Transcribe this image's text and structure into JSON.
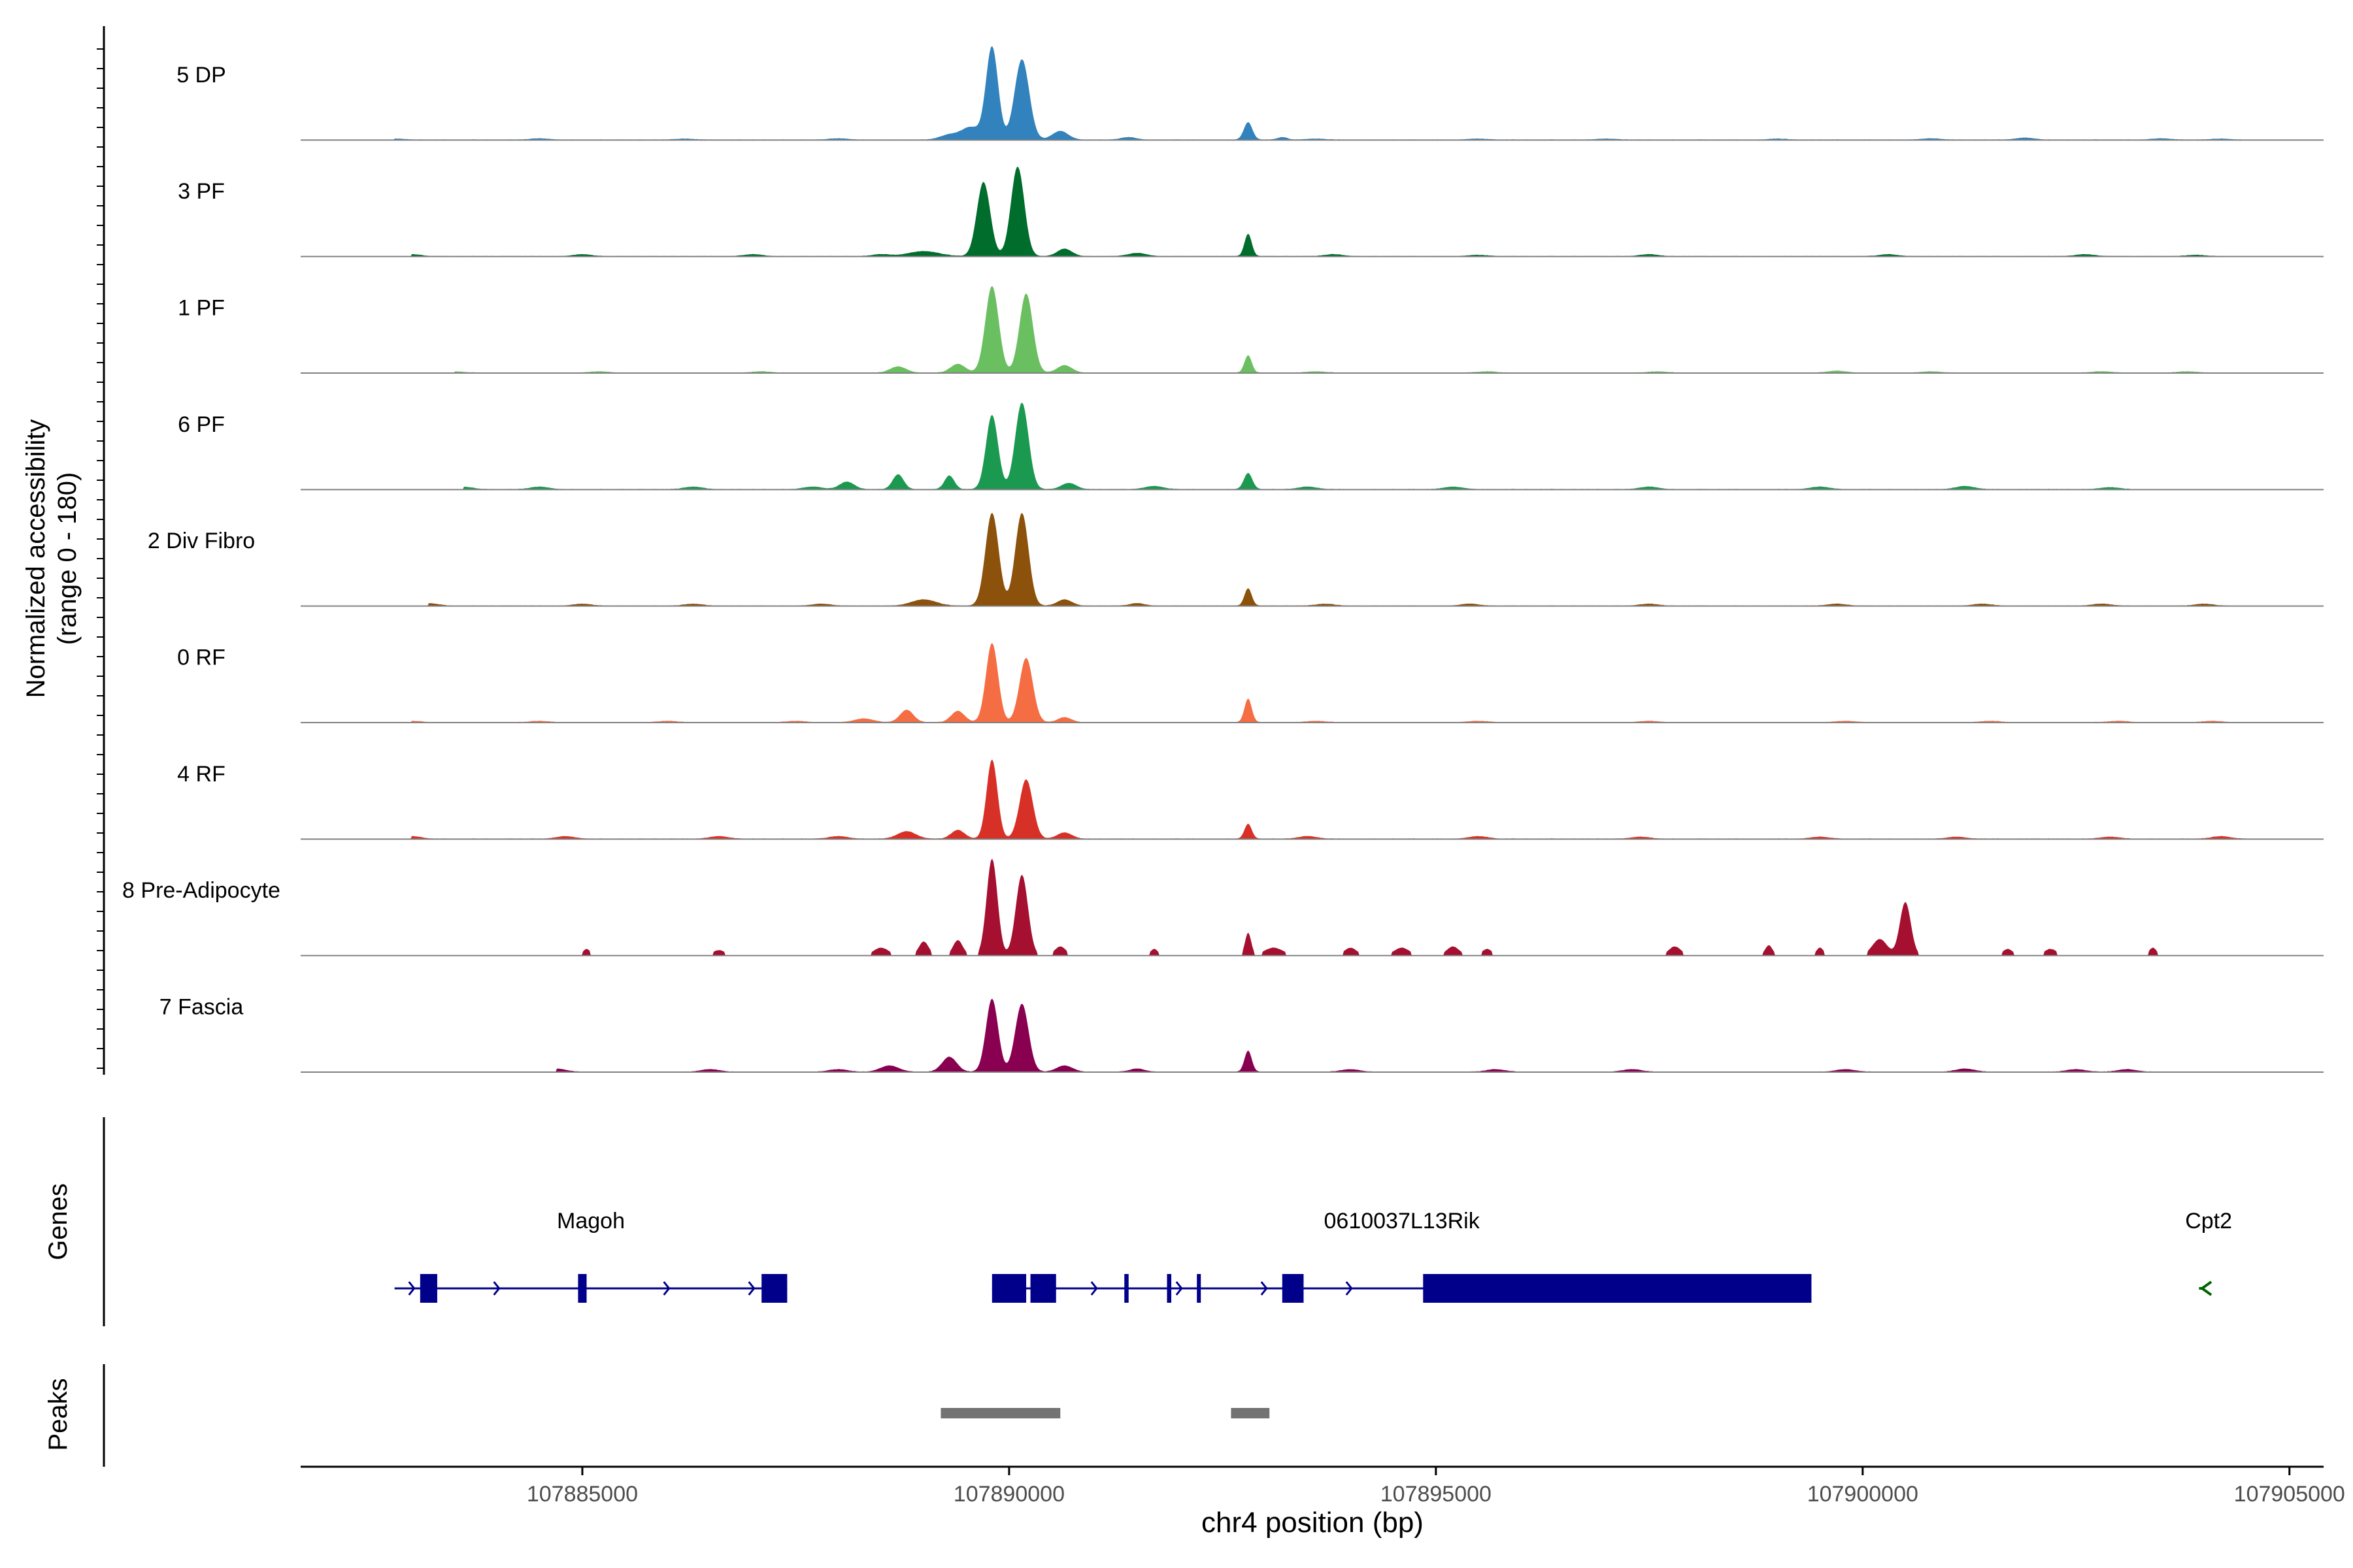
{
  "chart_data": {
    "type": "area",
    "title": "",
    "y_axis_label": "Normalized accessibility",
    "y_axis_sublabel": "(range 0 - 180)",
    "ylim": [
      0,
      180
    ],
    "xlabel": "chr4 position (bp)",
    "xlim": [
      107881700,
      107905400
    ],
    "x_ticks": [
      107885000,
      107890000,
      107895000,
      107900000,
      107905000
    ],
    "x_tick_labels": [
      "107885000",
      "107890000",
      "107895000",
      "107900000",
      "107905000"
    ],
    "tracks": [
      {
        "name": "5 DP",
        "color": "#3182bd",
        "bg": [
          [
            107882800,
            1.5
          ],
          [
            107884500,
            2
          ],
          [
            107886200,
            1.5
          ],
          [
            107888000,
            2
          ],
          [
            107893600,
            1.5
          ],
          [
            107895500,
            1.5
          ],
          [
            107897000,
            1.5
          ],
          [
            107899000,
            1.5
          ],
          [
            107900800,
            2
          ],
          [
            107901900,
            3
          ],
          [
            107903500,
            2
          ],
          [
            107904200,
            1.5
          ]
        ],
        "peaks": [
          [
            107889300,
            8,
            150
          ],
          [
            107889550,
            20,
            150
          ],
          [
            107889800,
            150,
            100
          ],
          [
            107890150,
            130,
            120
          ],
          [
            107890600,
            14,
            130
          ],
          [
            107891400,
            4,
            120
          ],
          [
            107892800,
            28,
            70
          ],
          [
            107893200,
            4,
            80
          ]
        ]
      },
      {
        "name": "3 PF",
        "color": "#006d2c",
        "bg": [
          [
            107883000,
            3
          ],
          [
            107885000,
            3
          ],
          [
            107887000,
            3
          ],
          [
            107888500,
            3
          ],
          [
            107893800,
            3
          ],
          [
            107895500,
            2
          ],
          [
            107897500,
            3
          ],
          [
            107900300,
            3
          ],
          [
            107902600,
            3
          ],
          [
            107903900,
            2
          ]
        ],
        "peaks": [
          [
            107889000,
            8,
            250
          ],
          [
            107889700,
            120,
            110
          ],
          [
            107890100,
            145,
            110
          ],
          [
            107890650,
            12,
            120
          ],
          [
            107891500,
            5,
            150
          ],
          [
            107892800,
            36,
            60
          ]
        ]
      },
      {
        "name": "1 PF",
        "color": "#6abf60",
        "bg": [
          [
            107883500,
            2
          ],
          [
            107885200,
            2
          ],
          [
            107887100,
            2
          ],
          [
            107893600,
            2
          ],
          [
            107895600,
            2
          ],
          [
            107897600,
            2
          ],
          [
            107899700,
            3
          ],
          [
            107900800,
            2
          ],
          [
            107902800,
            2
          ],
          [
            107903800,
            2
          ]
        ],
        "peaks": [
          [
            107888700,
            10,
            130
          ],
          [
            107889400,
            14,
            120
          ],
          [
            107889800,
            140,
            110
          ],
          [
            107890200,
            128,
            110
          ],
          [
            107890650,
            12,
            120
          ],
          [
            107892800,
            28,
            60
          ]
        ]
      },
      {
        "name": "6 PF",
        "color": "#1b9950",
        "bg": [
          [
            107883600,
            4
          ],
          [
            107884500,
            4
          ],
          [
            107886300,
            4
          ],
          [
            107887700,
            4
          ],
          [
            107893500,
            4
          ],
          [
            107895200,
            4
          ],
          [
            107897500,
            4
          ],
          [
            107899500,
            4
          ],
          [
            107901200,
            5
          ],
          [
            107902900,
            3
          ]
        ],
        "peaks": [
          [
            107888100,
            12,
            120
          ],
          [
            107888700,
            24,
            90
          ],
          [
            107889300,
            22,
            80
          ],
          [
            107889800,
            120,
            100
          ],
          [
            107890150,
            140,
            110
          ],
          [
            107890700,
            10,
            120
          ],
          [
            107891700,
            5,
            150
          ],
          [
            107892800,
            26,
            70
          ]
        ]
      },
      {
        "name": "2 Div Fibro",
        "color": "#8c510a",
        "bg": [
          [
            107883200,
            4
          ],
          [
            107885000,
            3
          ],
          [
            107886300,
            3
          ],
          [
            107887800,
            3
          ],
          [
            107893700,
            3
          ],
          [
            107895400,
            3
          ],
          [
            107897500,
            3
          ],
          [
            107899700,
            3
          ],
          [
            107901400,
            3
          ],
          [
            107902800,
            3
          ],
          [
            107904000,
            3
          ]
        ],
        "peaks": [
          [
            107889000,
            10,
            200
          ],
          [
            107889800,
            150,
            110
          ],
          [
            107890150,
            150,
            110
          ],
          [
            107890650,
            10,
            120
          ],
          [
            107891500,
            4,
            120
          ],
          [
            107892800,
            28,
            60
          ]
        ]
      },
      {
        "name": "0 RF",
        "color": "#f46d43",
        "bg": [
          [
            107883000,
            2
          ],
          [
            107884500,
            2
          ],
          [
            107886000,
            2
          ],
          [
            107887500,
            2
          ],
          [
            107893600,
            2
          ],
          [
            107895500,
            2
          ],
          [
            107897500,
            2
          ],
          [
            107899800,
            2
          ],
          [
            107901500,
            2
          ],
          [
            107903000,
            2
          ],
          [
            107904100,
            2
          ]
        ],
        "peaks": [
          [
            107888300,
            6,
            150
          ],
          [
            107888800,
            20,
            110
          ],
          [
            107889400,
            18,
            110
          ],
          [
            107889800,
            128,
            100
          ],
          [
            107890200,
            104,
            110
          ],
          [
            107890650,
            8,
            110
          ],
          [
            107892800,
            38,
            60
          ]
        ]
      },
      {
        "name": "4 RF",
        "color": "#d73027",
        "bg": [
          [
            107883000,
            4
          ],
          [
            107884800,
            4
          ],
          [
            107886600,
            4
          ],
          [
            107888000,
            4
          ],
          [
            107893500,
            4
          ],
          [
            107895500,
            4
          ],
          [
            107897400,
            3
          ],
          [
            107899500,
            3
          ],
          [
            107901100,
            3
          ],
          [
            107902900,
            3
          ],
          [
            107904200,
            4
          ]
        ],
        "peaks": [
          [
            107888800,
            12,
            150
          ],
          [
            107889400,
            14,
            110
          ],
          [
            107889800,
            128,
            90
          ],
          [
            107890200,
            96,
            110
          ],
          [
            107890650,
            10,
            120
          ],
          [
            107892800,
            24,
            60
          ]
        ]
      },
      {
        "name": "8 Pre-Adipocyte",
        "color": "#a50f30",
        "bg": [],
        "peaks": [
          [
            107885050,
            10,
            60
          ],
          [
            107886600,
            8,
            100
          ],
          [
            107888500,
            12,
            120
          ],
          [
            107889000,
            22,
            80
          ],
          [
            107889400,
            24,
            80
          ],
          [
            107889800,
            156,
            90
          ],
          [
            107890150,
            130,
            100
          ],
          [
            107890600,
            14,
            90
          ],
          [
            107891700,
            10,
            60
          ],
          [
            107892800,
            36,
            50
          ],
          [
            107893100,
            12,
            150
          ],
          [
            107894000,
            12,
            100
          ],
          [
            107894600,
            12,
            120
          ],
          [
            107895200,
            14,
            100
          ],
          [
            107895600,
            10,
            80
          ],
          [
            107897800,
            14,
            100
          ],
          [
            107898900,
            16,
            60
          ],
          [
            107899500,
            12,
            60
          ],
          [
            107900200,
            26,
            120
          ],
          [
            107900500,
            86,
            90
          ],
          [
            107901700,
            10,
            80
          ],
          [
            107902200,
            10,
            100
          ],
          [
            107903400,
            12,
            60
          ]
        ]
      },
      {
        "name": "7 Fascia",
        "color": "#8a0051",
        "bg": [
          [
            107884700,
            5
          ],
          [
            107886500,
            4
          ],
          [
            107888000,
            4
          ],
          [
            107894000,
            4
          ],
          [
            107895700,
            4
          ],
          [
            107897300,
            4
          ],
          [
            107899800,
            4
          ],
          [
            107901200,
            5
          ],
          [
            107902500,
            4
          ],
          [
            107903100,
            4
          ]
        ],
        "peaks": [
          [
            107888600,
            10,
            150
          ],
          [
            107889300,
            24,
            120
          ],
          [
            107889800,
            118,
            100
          ],
          [
            107890150,
            110,
            110
          ],
          [
            107890650,
            10,
            130
          ],
          [
            107891500,
            5,
            120
          ],
          [
            107892800,
            34,
            60
          ]
        ]
      }
    ],
    "genes_track": {
      "label": "Genes",
      "color": "#00008b",
      "genes": [
        {
          "name": "Magoh",
          "strand": "+",
          "start": 107882800,
          "end": 107887400,
          "exons": [
            [
              107883100,
              107883300
            ],
            [
              107884950,
              107885050
            ],
            [
              107887100,
              107887400
            ]
          ]
        },
        {
          "name": "0610037L13Rik",
          "strand": "+",
          "start": 107889800,
          "end": 107899400,
          "exons": [
            [
              107889800,
              107890200
            ],
            [
              107890250,
              107890550
            ],
            [
              107891350,
              107891400
            ],
            [
              107891850,
              107891900
            ],
            [
              107892200,
              107892230
            ],
            [
              107893200,
              107893450
            ],
            [
              107894850,
              107899400
            ]
          ]
        },
        {
          "name": "Cpt2",
          "strand": "-",
          "start": 107903900,
          "end": 107904400,
          "color": "#006400",
          "exons": []
        }
      ]
    },
    "peaks_track": {
      "label": "Peaks",
      "color": "#737373",
      "regions": [
        [
          107889200,
          107890600
        ],
        [
          107892600,
          107893050
        ]
      ]
    }
  }
}
